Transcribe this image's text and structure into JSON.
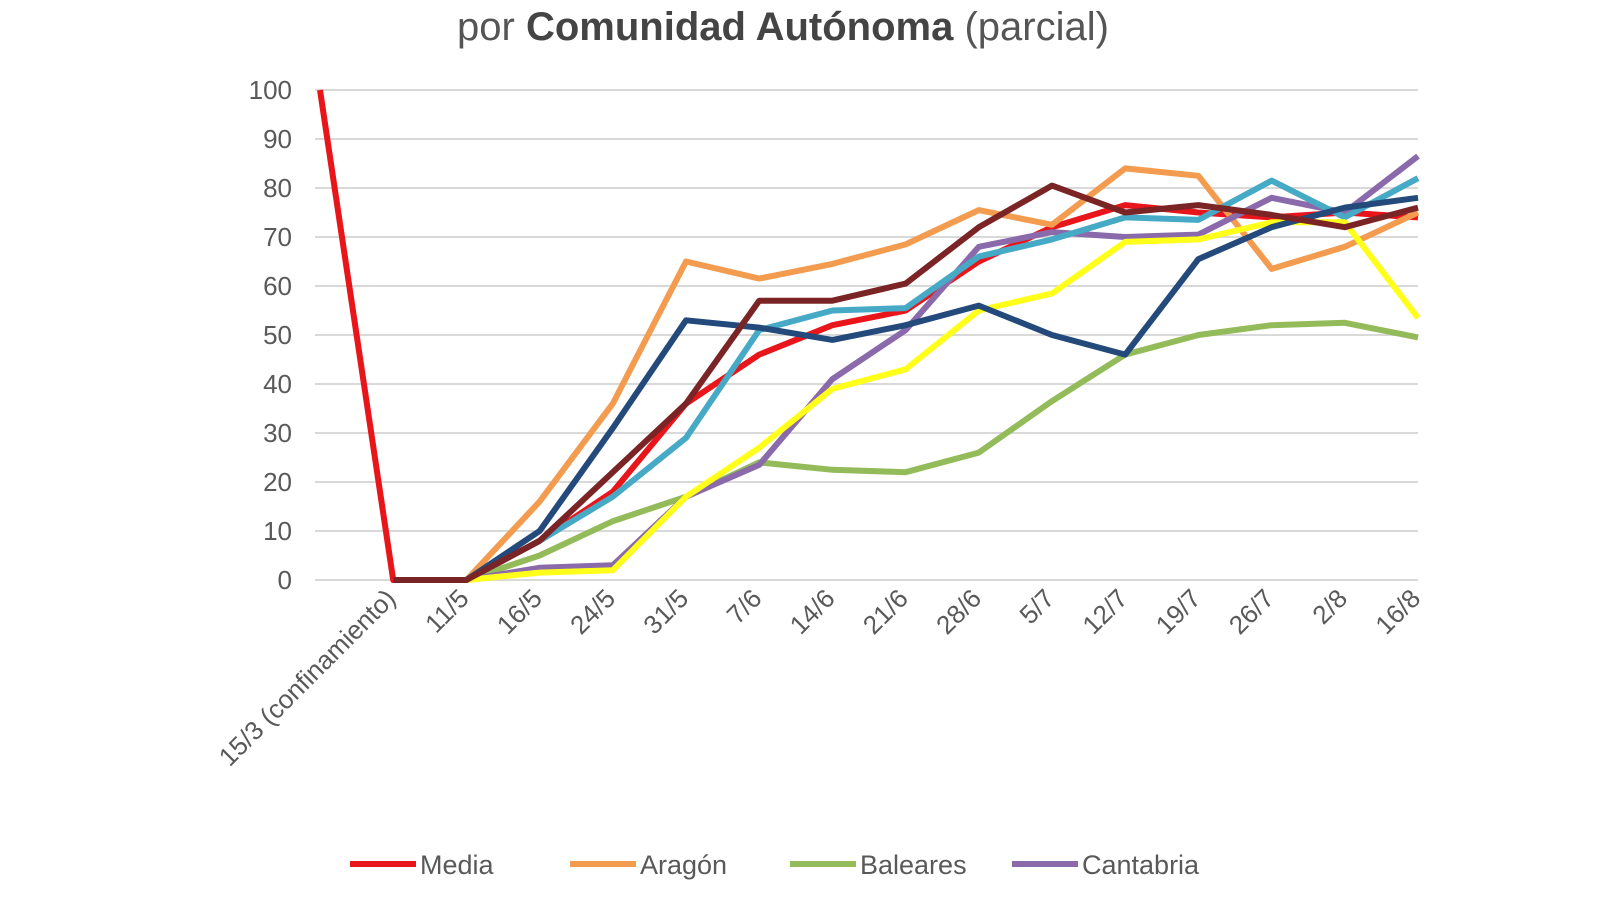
{
  "chart_data": {
    "type": "line",
    "title": {
      "prefix": "por ",
      "bold": "Comunidad Autónoma",
      "suffix": " (parcial)"
    },
    "xlabel": "",
    "ylabel": "",
    "ylim": [
      0,
      100
    ],
    "yticks": [
      0,
      10,
      20,
      30,
      40,
      50,
      60,
      70,
      80,
      90,
      100
    ],
    "grid": true,
    "legend_position": "bottom",
    "categories": [
      "",
      "15/3 (confinamiento)",
      "11/5",
      "16/5",
      "24/5",
      "31/5",
      "7/6",
      "14/6",
      "21/6",
      "28/6",
      "5/7",
      "12/7",
      "19/7",
      "26/7",
      "2/8",
      "16/8"
    ],
    "series": [
      {
        "name": "Media",
        "color": "#e8151b",
        "values": [
          100,
          0,
          0,
          8,
          18,
          36,
          46,
          52,
          55,
          65,
          72,
          76.5,
          75,
          74,
          75,
          74
        ]
      },
      {
        "name": "Aragón",
        "color": "#f39b4e",
        "values": [
          null,
          0,
          0,
          16,
          36,
          65,
          61.5,
          64.5,
          68.5,
          75.5,
          72.5,
          84,
          82.5,
          63.5,
          68,
          75
        ]
      },
      {
        "name": "Baleares",
        "color": "#93bb5a",
        "values": [
          null,
          0,
          0,
          5,
          12,
          17,
          24,
          22.5,
          22,
          26,
          36.5,
          46,
          50,
          52,
          52.5,
          49.5
        ]
      },
      {
        "name": "Cantabria",
        "color": "#8a6aaa",
        "values": [
          null,
          0,
          0,
          2.5,
          3,
          17,
          23.5,
          41,
          51,
          68,
          71,
          70,
          70.5,
          78,
          75,
          86.5
        ]
      },
      {
        "name": "",
        "color": "#46aac6",
        "values": [
          null,
          0,
          0,
          8,
          17,
          29,
          51,
          55,
          55.5,
          66,
          69.5,
          74,
          73.5,
          81.5,
          74,
          82
        ]
      },
      {
        "name": "",
        "color": "#ffff1a",
        "values": [
          null,
          0,
          0,
          1.5,
          2,
          17,
          27,
          39,
          43,
          55,
          58.5,
          69,
          69.5,
          73,
          73,
          53.5
        ]
      },
      {
        "name": "",
        "color": "#234a7a",
        "values": [
          null,
          0,
          0,
          10,
          31,
          53,
          51.5,
          49,
          52,
          56,
          50,
          46,
          65.5,
          72,
          76,
          78
        ]
      },
      {
        "name": "",
        "color": "#7b2426",
        "values": [
          null,
          0,
          0,
          8,
          22,
          36,
          57,
          57,
          60.5,
          72,
          80.5,
          75,
          76.5,
          74.5,
          72,
          76
        ]
      }
    ]
  }
}
